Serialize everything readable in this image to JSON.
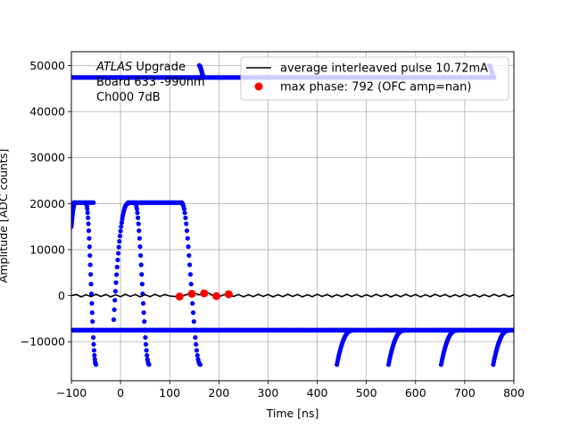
{
  "chart_data": {
    "type": "scatter",
    "xlabel": "Time [ns]",
    "ylabel": "Amplitude [ADC counts]",
    "xlim": [
      -100,
      800
    ],
    "ylim": [
      -18500,
      53000
    ],
    "xticks": [
      -100,
      0,
      100,
      200,
      300,
      400,
      500,
      600,
      700,
      800
    ],
    "yticks": [
      -10000,
      0,
      10000,
      20000,
      30000,
      40000,
      50000
    ],
    "grid": true,
    "legend_placement": "top-right",
    "annotation": {
      "line1_italic": "ATLAS",
      "line1_rest": " Upgrade",
      "line2": "Board 633 -990nm",
      "line3": "Ch000 7dB"
    },
    "colors": {
      "samples": "#0000ff",
      "average": "#000000",
      "max_phase": "#ff0000",
      "grid": "#b0b0b0"
    },
    "series": [
      {
        "name": "average interleaved pulse 10.72mA",
        "type": "line",
        "color": "#000000",
        "x": [
          -100,
          -90,
          -80,
          -70,
          -60,
          -50,
          -40,
          -30,
          -20,
          -10,
          0,
          10,
          20,
          30,
          40,
          50,
          60,
          70,
          80,
          90,
          100,
          110,
          120,
          130,
          140,
          150,
          160,
          170,
          180,
          190,
          200,
          210,
          220,
          230,
          240,
          250,
          260,
          270,
          280,
          290,
          300,
          310,
          320,
          330,
          340,
          350,
          360,
          370,
          380,
          390,
          400,
          410,
          420,
          430,
          440,
          450,
          460,
          470,
          480,
          490,
          500,
          510,
          520,
          530,
          540,
          550,
          560,
          570,
          580,
          590,
          600,
          610,
          620,
          630,
          640,
          650,
          660,
          670,
          680,
          690,
          700,
          710,
          720,
          730,
          740,
          750,
          760,
          770,
          780,
          790,
          800
        ],
        "y": [
          0,
          250,
          -300,
          200,
          -250,
          300,
          -200,
          250,
          -300,
          200,
          -250,
          300,
          -200,
          250,
          -300,
          200,
          -250,
          300,
          -200,
          250,
          -100,
          -200,
          -350,
          100,
          400,
          500,
          200,
          350,
          500,
          -100,
          -300,
          200,
          300,
          -200,
          250,
          -300,
          200,
          -250,
          300,
          -200,
          250,
          -300,
          200,
          -250,
          300,
          -200,
          250,
          -300,
          200,
          -250,
          300,
          -200,
          250,
          -300,
          200,
          -250,
          300,
          -200,
          250,
          -300,
          200,
          -250,
          300,
          -200,
          250,
          -300,
          200,
          -250,
          300,
          -200,
          250,
          -300,
          200,
          -250,
          300,
          -200,
          250,
          -300,
          200,
          -250,
          300,
          -200,
          250,
          -300,
          200,
          -250,
          300,
          -200,
          250,
          -300,
          200
        ]
      },
      {
        "name": "max phase: 792 (OFC amp=nan)",
        "type": "scatter",
        "color": "#ff0000",
        "x": [
          120,
          145,
          170,
          195,
          220
        ],
        "y": [
          -200,
          400,
          500,
          -100,
          300
        ]
      },
      {
        "type": "scatter",
        "color": "#0000ff",
        "segments": [
          {
            "kind": "flat",
            "x0": -100,
            "x1": 800,
            "y": -7500
          },
          {
            "kind": "flat",
            "x0": -95,
            "x1": -55,
            "y": 20200
          },
          {
            "kind": "flat",
            "x0": 15,
            "x1": 35,
            "y": 20200
          },
          {
            "kind": "flat",
            "x0": 40,
            "x1": 125,
            "y": 20200
          },
          {
            "kind": "flat",
            "x0": -100,
            "x1": 760,
            "y": 47400
          },
          {
            "kind": "fall",
            "x0": -70,
            "x1": -50,
            "y0": 20000,
            "y1": -15000
          },
          {
            "kind": "rise",
            "x0": -15,
            "x1": 15,
            "y0": -7500,
            "y1": 20000
          },
          {
            "kind": "fall",
            "x0": 30,
            "x1": 58,
            "y0": 20000,
            "y1": -15000
          },
          {
            "kind": "rise",
            "x0": -100,
            "x1": -92,
            "y0": 15000,
            "y1": 20200
          },
          {
            "kind": "fall",
            "x0": 125,
            "x1": 162,
            "y0": 20000,
            "y1": -15000
          },
          {
            "kind": "rise",
            "x0": 440,
            "x1": 470,
            "y0": -15000,
            "y1": -7600
          },
          {
            "kind": "rise",
            "x0": 545,
            "x1": 575,
            "y0": -15000,
            "y1": -7600
          },
          {
            "kind": "rise",
            "x0": 652,
            "x1": 682,
            "y0": -15000,
            "y1": -7600
          },
          {
            "kind": "rise",
            "x0": 758,
            "x1": 788,
            "y0": -15000,
            "y1": -7600
          },
          {
            "kind": "fall",
            "x0": 160,
            "x1": 170,
            "y0": 50000,
            "y1": 47400
          },
          {
            "kind": "fall",
            "x0": 750,
            "x1": 760,
            "y0": 50000,
            "y1": 47400
          }
        ]
      }
    ]
  }
}
